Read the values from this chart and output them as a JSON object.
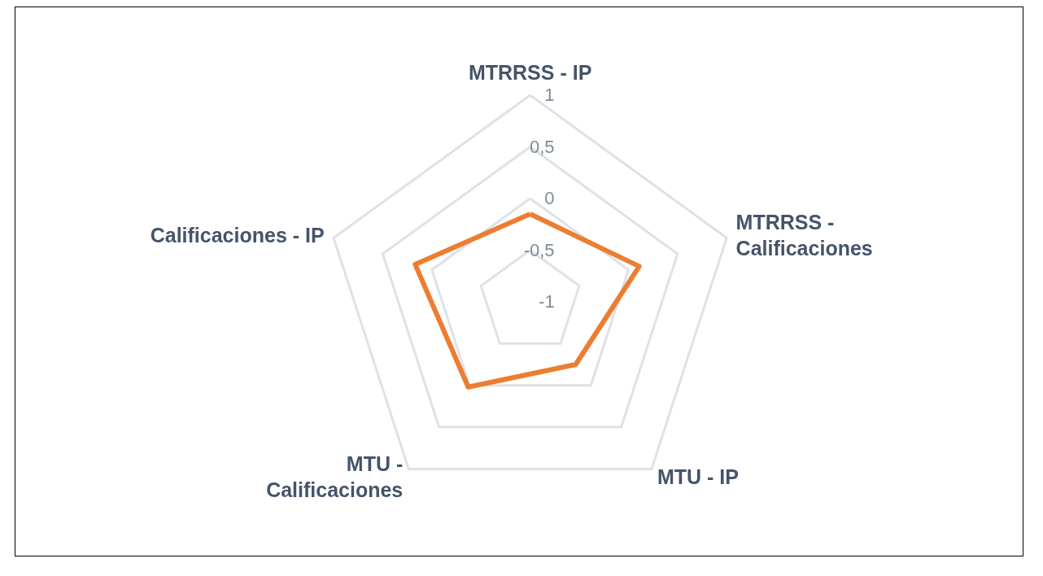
{
  "chart_data": {
    "type": "radar",
    "categories": [
      "MTRRSS - IP",
      "MTRRSS - Calificaciones",
      "MTU - IP",
      "MTU - Calificaciones",
      "Calificaciones - IP"
    ],
    "series": [
      {
        "color": "#ed7d31",
        "values": [
          -0.15,
          0.11,
          -0.25,
          0.02,
          0.17
        ]
      }
    ],
    "ylim": [
      -1,
      1
    ],
    "yticks": [
      -1,
      {
        "value": -0.5,
        "label": "-0,5"
      },
      0,
      {
        "value": 0.5,
        "label": "0,5"
      },
      1
    ],
    "marker": "none",
    "line_style": "solid"
  }
}
